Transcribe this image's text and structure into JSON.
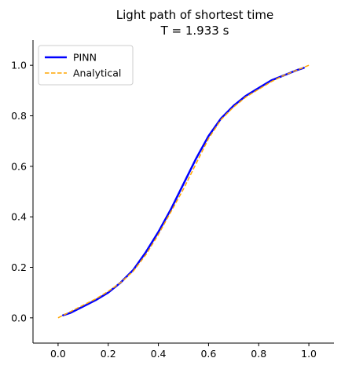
{
  "chart_data": {
    "type": "line",
    "title": "Light path of shortest time",
    "subtitle": "T = 1.933 s",
    "xlabel": "",
    "ylabel": "",
    "xlim": [
      -0.1,
      1.1
    ],
    "ylim": [
      -0.1,
      1.1
    ],
    "xticks": [
      0.0,
      0.2,
      0.4,
      0.6,
      0.8,
      1.0
    ],
    "yticks": [
      0.0,
      0.2,
      0.4,
      0.6,
      0.8,
      1.0
    ],
    "xtick_labels": [
      "0.0",
      "0.2",
      "0.4",
      "0.6",
      "0.8",
      "1.0"
    ],
    "ytick_labels": [
      "0.0",
      "0.2",
      "0.4",
      "0.6",
      "0.8",
      "1.0"
    ],
    "grid": false,
    "legend_position": "top-left",
    "series": [
      {
        "name": "PINN",
        "color": "#0000ff",
        "style": "solid",
        "x": [
          0.02,
          0.05,
          0.1,
          0.15,
          0.2,
          0.25,
          0.3,
          0.35,
          0.4,
          0.45,
          0.5,
          0.55,
          0.6,
          0.65,
          0.7,
          0.75,
          0.8,
          0.85,
          0.9,
          0.95,
          0.98
        ],
        "y": [
          0.01,
          0.02,
          0.045,
          0.07,
          0.1,
          0.14,
          0.19,
          0.26,
          0.34,
          0.43,
          0.53,
          0.63,
          0.72,
          0.79,
          0.84,
          0.88,
          0.91,
          0.94,
          0.96,
          0.98,
          0.99
        ]
      },
      {
        "name": "Analytical",
        "color": "#ffa500",
        "style": "dashed",
        "x": [
          0.0,
          0.05,
          0.1,
          0.15,
          0.2,
          0.25,
          0.3,
          0.35,
          0.4,
          0.45,
          0.5,
          0.55,
          0.6,
          0.65,
          0.7,
          0.75,
          0.8,
          0.85,
          0.9,
          0.95,
          1.0
        ],
        "y": [
          0.0,
          0.025,
          0.05,
          0.075,
          0.105,
          0.14,
          0.185,
          0.25,
          0.33,
          0.42,
          0.51,
          0.61,
          0.71,
          0.785,
          0.835,
          0.875,
          0.905,
          0.935,
          0.96,
          0.98,
          1.0
        ]
      }
    ]
  }
}
